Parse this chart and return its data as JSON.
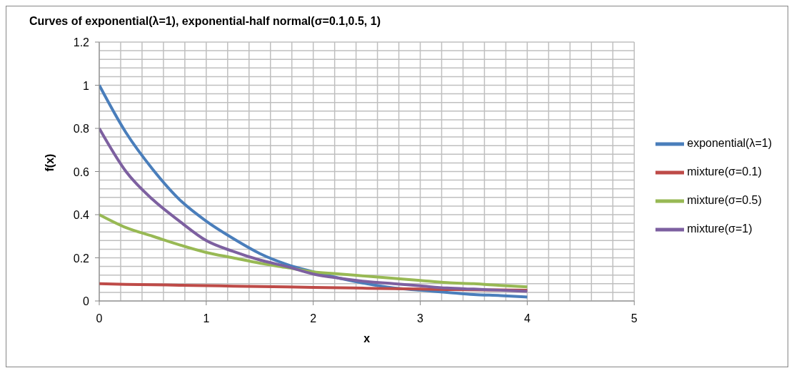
{
  "chart_data": {
    "type": "line",
    "title": "Curves of exponential(λ=1), exponential-half normal(σ=0.1,0.5,  1)",
    "xlabel": "x",
    "ylabel": "f(x)",
    "x": [
      0,
      0.25,
      0.5,
      0.75,
      1,
      1.25,
      1.5,
      1.75,
      2,
      2.25,
      2.5,
      2.75,
      3,
      3.25,
      3.5,
      3.75,
      4
    ],
    "series": [
      {
        "name": "exponential(λ=1)",
        "color": "#4a7ebb",
        "values": [
          1,
          0.78,
          0.61,
          0.47,
          0.37,
          0.29,
          0.22,
          0.17,
          0.135,
          0.105,
          0.08,
          0.06,
          0.05,
          0.04,
          0.03,
          0.025,
          0.018
        ]
      },
      {
        "name": "mixture(σ=0.1)",
        "color": "#be4b48",
        "values": [
          0.08,
          0.077,
          0.075,
          0.073,
          0.071,
          0.069,
          0.067,
          0.065,
          0.063,
          0.061,
          0.059,
          0.057,
          0.055,
          0.053,
          0.052,
          0.051,
          0.05
        ]
      },
      {
        "name": "mixture(σ=0.5)",
        "color": "#98b954",
        "values": [
          0.4,
          0.34,
          0.3,
          0.26,
          0.225,
          0.2,
          0.175,
          0.155,
          0.135,
          0.125,
          0.115,
          0.105,
          0.095,
          0.085,
          0.08,
          0.072,
          0.065
        ]
      },
      {
        "name": "mixture(σ=1)",
        "color": "#7d60a0",
        "values": [
          0.8,
          0.6,
          0.47,
          0.37,
          0.28,
          0.23,
          0.19,
          0.16,
          0.125,
          0.105,
          0.09,
          0.08,
          0.07,
          0.06,
          0.055,
          0.05,
          0.045
        ]
      }
    ],
    "xlim": [
      0,
      5
    ],
    "xticks": [
      0,
      {
        "value": 0.2,
        "label": null
      },
      {
        "value": 0.4,
        "label": null
      },
      {
        "value": 0.6,
        "label": null
      },
      {
        "value": 0.8,
        "label": null
      },
      1,
      {
        "value": 1.2,
        "label": null
      },
      {
        "value": 1.4,
        "label": null
      },
      {
        "value": 1.6,
        "label": null
      },
      {
        "value": 1.8,
        "label": null
      },
      2,
      {
        "value": 2.2,
        "label": null
      },
      {
        "value": 2.4,
        "label": null
      },
      {
        "value": 2.6,
        "label": null
      },
      {
        "value": 2.8,
        "label": null
      },
      3,
      {
        "value": 3.2,
        "label": null
      },
      {
        "value": 3.4,
        "label": null
      },
      {
        "value": 3.6,
        "label": null
      },
      {
        "value": 3.8,
        "label": null
      },
      4,
      {
        "value": 4.2,
        "label": null
      },
      {
        "value": 4.4,
        "label": null
      },
      {
        "value": 4.6,
        "label": null
      },
      {
        "value": 4.8,
        "label": null
      },
      5
    ],
    "ylim": [
      0,
      1.2
    ],
    "yticks": [
      0,
      {
        "value": 0.04,
        "label": null
      },
      {
        "value": 0.08,
        "label": null
      },
      {
        "value": 0.12,
        "label": null
      },
      {
        "value": 0.16,
        "label": null
      },
      0.2,
      {
        "value": 0.24,
        "label": null
      },
      {
        "value": 0.28,
        "label": null
      },
      {
        "value": 0.32,
        "label": null
      },
      {
        "value": 0.36,
        "label": null
      },
      0.4,
      {
        "value": 0.44,
        "label": null
      },
      {
        "value": 0.48,
        "label": null
      },
      {
        "value": 0.52,
        "label": null
      },
      {
        "value": 0.56,
        "label": null
      },
      0.6,
      {
        "value": 0.64,
        "label": null
      },
      {
        "value": 0.68,
        "label": null
      },
      {
        "value": 0.72,
        "label": null
      },
      {
        "value": 0.76,
        "label": null
      },
      0.8,
      {
        "value": 0.84,
        "label": null
      },
      {
        "value": 0.88,
        "label": null
      },
      {
        "value": 0.92,
        "label": null
      },
      {
        "value": 0.96,
        "label": null
      },
      1,
      {
        "value": 1.04,
        "label": null
      },
      {
        "value": 1.08,
        "label": null
      },
      {
        "value": 1.12,
        "label": null
      },
      {
        "value": 1.16,
        "label": null
      },
      1.2
    ],
    "grid": true,
    "legend": "right",
    "marker": "none",
    "line_style": "solid"
  }
}
